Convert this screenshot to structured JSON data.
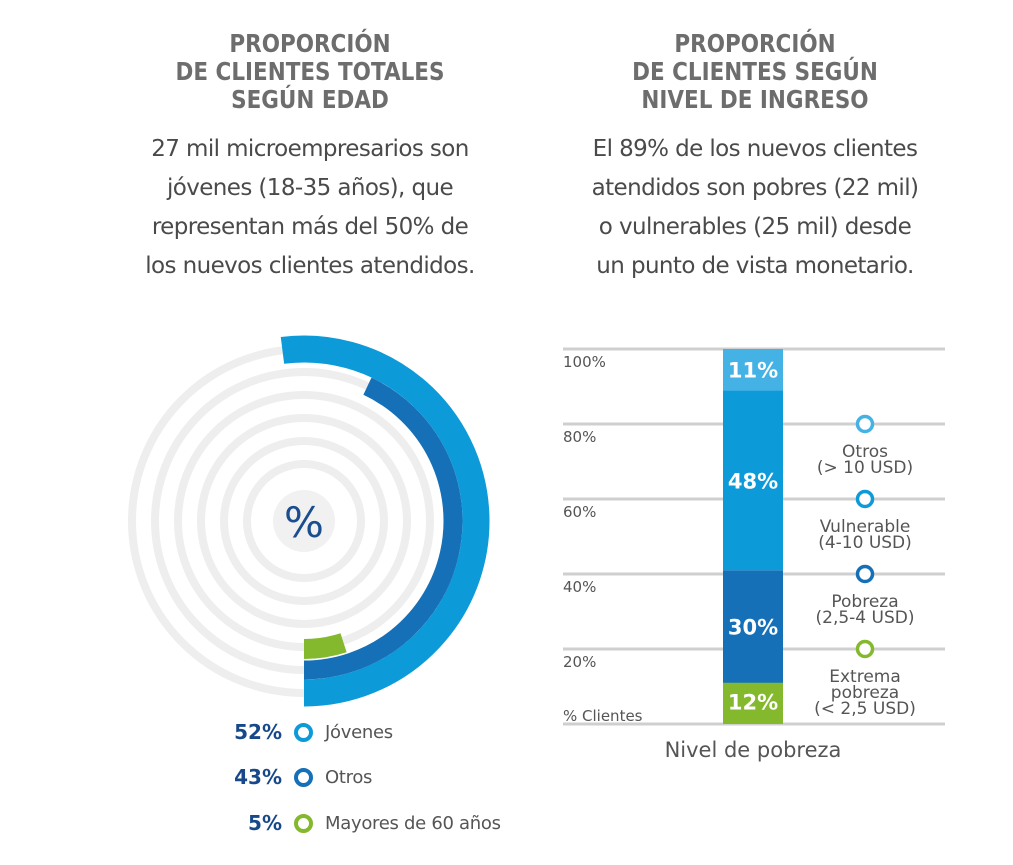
{
  "left_panel": {
    "title_lines": [
      "PROPORCIÓN",
      "DE CLIENTES TOTALES",
      "SEGÚN EDAD"
    ],
    "description_lines": [
      "27 mil microempresarios son",
      "jóvenes (18-35 años), que",
      "representan más del 50% de",
      "los nuevos clientes atendidos."
    ]
  },
  "right_panel": {
    "title_lines": [
      "PROPORCIÓN",
      "DE CLIENTES SEGÚN",
      "NIVEL DE INGRESO"
    ],
    "description_lines": [
      "El 89% de los nuevos clientes",
      "atendidos son pobres (22 mil)",
      "o vulnerables (25 mil) desde",
      "un punto de vista monetario."
    ]
  },
  "chart_data": [
    {
      "type": "radial_bar",
      "center_label": "%",
      "series": [
        {
          "name": "Jóvenes",
          "value": 52,
          "label": "52%",
          "color": "#0d9ad9"
        },
        {
          "name": "Otros",
          "value": 43,
          "label": "43%",
          "color": "#1570b8"
        },
        {
          "name": "Mayores de 60 años",
          "value": 5,
          "label": "5%",
          "color": "#84b92d"
        }
      ],
      "track_color": "#eeeeee"
    },
    {
      "type": "bar",
      "stacked": true,
      "xlabel": "Nivel de pobreza",
      "ylabel": "% Clientes",
      "ylim": [
        0,
        100
      ],
      "yticks": [
        {
          "value": 20,
          "label": "20%"
        },
        {
          "value": 40,
          "label": "40%"
        },
        {
          "value": 60,
          "label": "60%"
        },
        {
          "value": 80,
          "label": "80%"
        },
        {
          "value": 100,
          "label": "100%"
        }
      ],
      "grid": true,
      "segments": [
        {
          "name": "Extrema pobreza",
          "range_lines": [
            "Extrema",
            "pobreza",
            "(< 2,5 USD)"
          ],
          "value": 12,
          "label": "12%",
          "color": "#84b92d"
        },
        {
          "name": "Pobreza",
          "range_lines": [
            "Pobreza",
            "(2,5-4 USD)"
          ],
          "value": 30,
          "label": "30%",
          "color": "#1570b8"
        },
        {
          "name": "Vulnerable",
          "range_lines": [
            "Vulnerable",
            "(4-10 USD)"
          ],
          "value": 48,
          "label": "48%",
          "color": "#0d9ad9"
        },
        {
          "name": "Otros",
          "range_lines": [
            "Otros",
            "(> 10 USD)"
          ],
          "value": 11,
          "label": "11%",
          "color": "#45b2e6"
        }
      ],
      "legend_rings": [
        {
          "name": "Otros",
          "color": "#45b2e6",
          "at": 80
        },
        {
          "name": "Vulnerable",
          "color": "#0d9ad9",
          "at": 60
        },
        {
          "name": "Pobreza",
          "color": "#1570b8",
          "at": 40
        },
        {
          "name": "Extrema pobreza",
          "color": "#84b92d",
          "at": 20
        }
      ]
    }
  ]
}
